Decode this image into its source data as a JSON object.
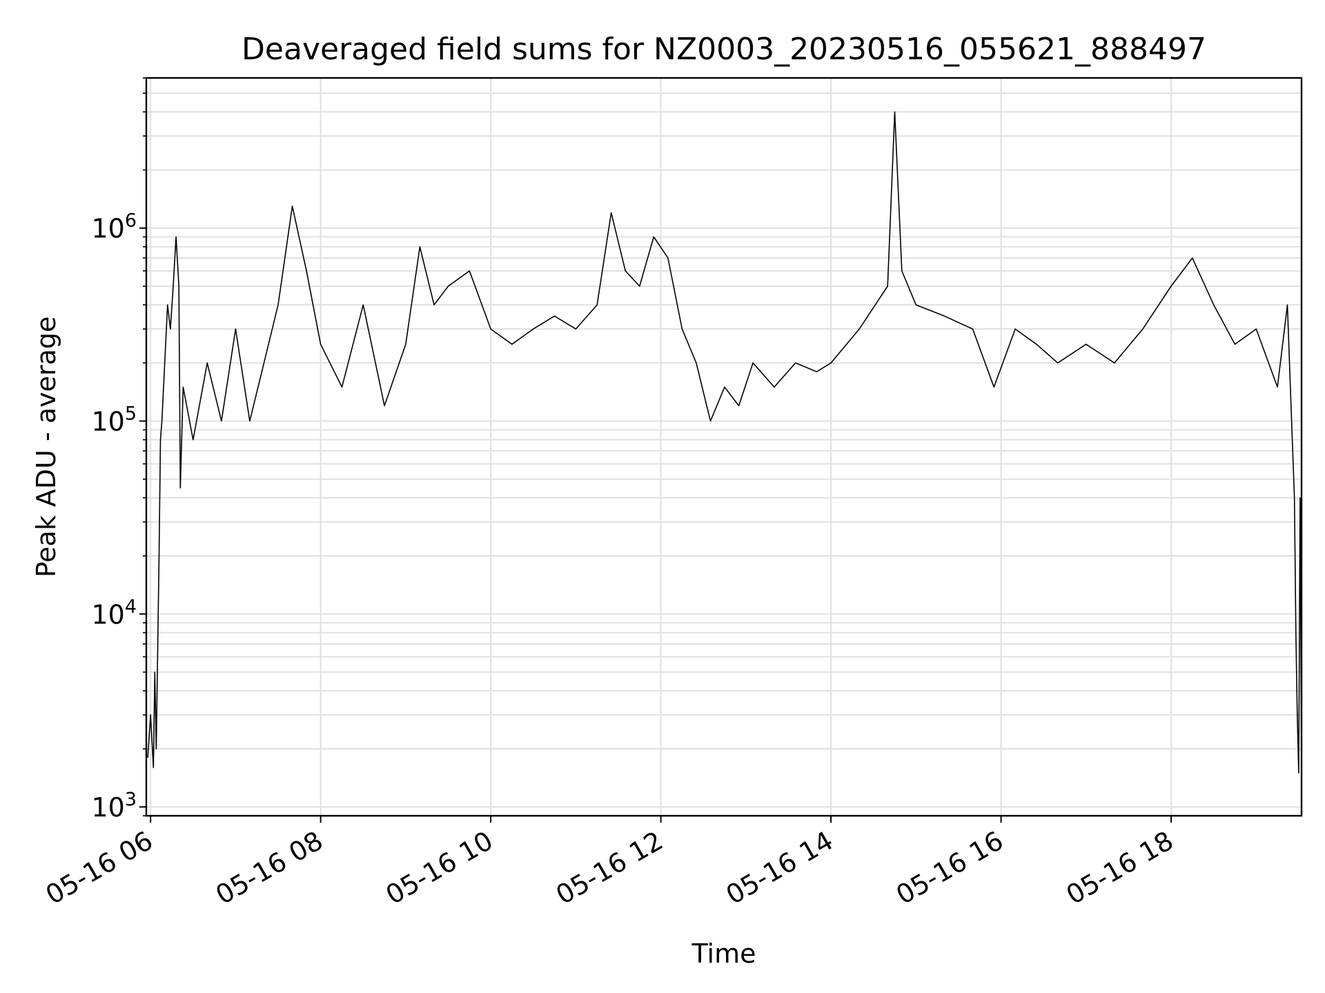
{
  "chart_data": {
    "type": "line",
    "title": "Deaveraged field sums for NZ0003_20230516_055621_888497",
    "xlabel": "Time",
    "ylabel": "Peak ADU - average",
    "yscale": "log",
    "ylim": [
      900,
      6000000
    ],
    "xlim": [
      "05-16 05:57",
      "05-16 19:32"
    ],
    "grid": true,
    "line_color": "#000000",
    "grid_color": "#e0e0e0",
    "x_ticks": [
      {
        "t": "05-16 06:00",
        "label": "05-16 06"
      },
      {
        "t": "05-16 08:00",
        "label": "05-16 08"
      },
      {
        "t": "05-16 10:00",
        "label": "05-16 10"
      },
      {
        "t": "05-16 12:00",
        "label": "05-16 12"
      },
      {
        "t": "05-16 14:00",
        "label": "05-16 14"
      },
      {
        "t": "05-16 16:00",
        "label": "05-16 16"
      },
      {
        "t": "05-16 18:00",
        "label": "05-16 18"
      }
    ],
    "y_ticks": [
      {
        "value": 1000,
        "base": "10",
        "exp": "3"
      },
      {
        "value": 10000,
        "base": "10",
        "exp": "4"
      },
      {
        "value": 100000,
        "base": "10",
        "exp": "5"
      },
      {
        "value": 1000000,
        "base": "10",
        "exp": "6"
      }
    ],
    "series": [
      {
        "color": "#000000",
        "points": [
          [
            "05-16 05:58",
            1800
          ],
          [
            "05-16 06:00",
            3000
          ],
          [
            "05-16 06:02",
            1600
          ],
          [
            "05-16 06:03",
            5000
          ],
          [
            "05-16 06:04",
            2000
          ],
          [
            "05-16 06:06",
            20000
          ],
          [
            "05-16 06:07",
            80000
          ],
          [
            "05-16 06:08",
            100000
          ],
          [
            "05-16 06:10",
            200000
          ],
          [
            "05-16 06:12",
            400000
          ],
          [
            "05-16 06:14",
            300000
          ],
          [
            "05-16 06:16",
            500000
          ],
          [
            "05-16 06:18",
            900000
          ],
          [
            "05-16 06:20",
            500000
          ],
          [
            "05-16 06:21",
            45000
          ],
          [
            "05-16 06:23",
            150000
          ],
          [
            "05-16 06:30",
            80000
          ],
          [
            "05-16 06:40",
            200000
          ],
          [
            "05-16 06:50",
            100000
          ],
          [
            "05-16 07:00",
            300000
          ],
          [
            "05-16 07:10",
            100000
          ],
          [
            "05-16 07:20",
            200000
          ],
          [
            "05-16 07:30",
            400000
          ],
          [
            "05-16 07:40",
            1300000
          ],
          [
            "05-16 07:50",
            600000
          ],
          [
            "05-16 08:00",
            250000
          ],
          [
            "05-16 08:15",
            150000
          ],
          [
            "05-16 08:30",
            400000
          ],
          [
            "05-16 08:45",
            120000
          ],
          [
            "05-16 09:00",
            250000
          ],
          [
            "05-16 09:10",
            800000
          ],
          [
            "05-16 09:20",
            400000
          ],
          [
            "05-16 09:30",
            500000
          ],
          [
            "05-16 09:45",
            600000
          ],
          [
            "05-16 10:00",
            300000
          ],
          [
            "05-16 10:15",
            250000
          ],
          [
            "05-16 10:30",
            300000
          ],
          [
            "05-16 10:45",
            350000
          ],
          [
            "05-16 11:00",
            300000
          ],
          [
            "05-16 11:15",
            400000
          ],
          [
            "05-16 11:25",
            1200000
          ],
          [
            "05-16 11:35",
            600000
          ],
          [
            "05-16 11:45",
            500000
          ],
          [
            "05-16 11:55",
            900000
          ],
          [
            "05-16 12:05",
            700000
          ],
          [
            "05-16 12:15",
            300000
          ],
          [
            "05-16 12:25",
            200000
          ],
          [
            "05-16 12:35",
            100000
          ],
          [
            "05-16 12:45",
            150000
          ],
          [
            "05-16 12:55",
            120000
          ],
          [
            "05-16 13:05",
            200000
          ],
          [
            "05-16 13:20",
            150000
          ],
          [
            "05-16 13:35",
            200000
          ],
          [
            "05-16 13:50",
            180000
          ],
          [
            "05-16 14:00",
            200000
          ],
          [
            "05-16 14:20",
            300000
          ],
          [
            "05-16 14:40",
            500000
          ],
          [
            "05-16 14:45",
            4000000
          ],
          [
            "05-16 14:50",
            600000
          ],
          [
            "05-16 15:00",
            400000
          ],
          [
            "05-16 15:20",
            350000
          ],
          [
            "05-16 15:40",
            300000
          ],
          [
            "05-16 15:55",
            150000
          ],
          [
            "05-16 16:10",
            300000
          ],
          [
            "05-16 16:25",
            250000
          ],
          [
            "05-16 16:40",
            200000
          ],
          [
            "05-16 17:00",
            250000
          ],
          [
            "05-16 17:20",
            200000
          ],
          [
            "05-16 17:40",
            300000
          ],
          [
            "05-16 18:00",
            500000
          ],
          [
            "05-16 18:15",
            700000
          ],
          [
            "05-16 18:30",
            400000
          ],
          [
            "05-16 18:45",
            250000
          ],
          [
            "05-16 19:00",
            300000
          ],
          [
            "05-16 19:15",
            150000
          ],
          [
            "05-16 19:22",
            400000
          ],
          [
            "05-16 19:25",
            100000
          ],
          [
            "05-16 19:27",
            40000
          ],
          [
            "05-16 19:28",
            8000
          ],
          [
            "05-16 19:29",
            3000
          ],
          [
            "05-16 19:30",
            1500
          ],
          [
            "05-16 19:31",
            40000
          ],
          [
            "05-16 19:32",
            1400
          ]
        ]
      }
    ]
  }
}
